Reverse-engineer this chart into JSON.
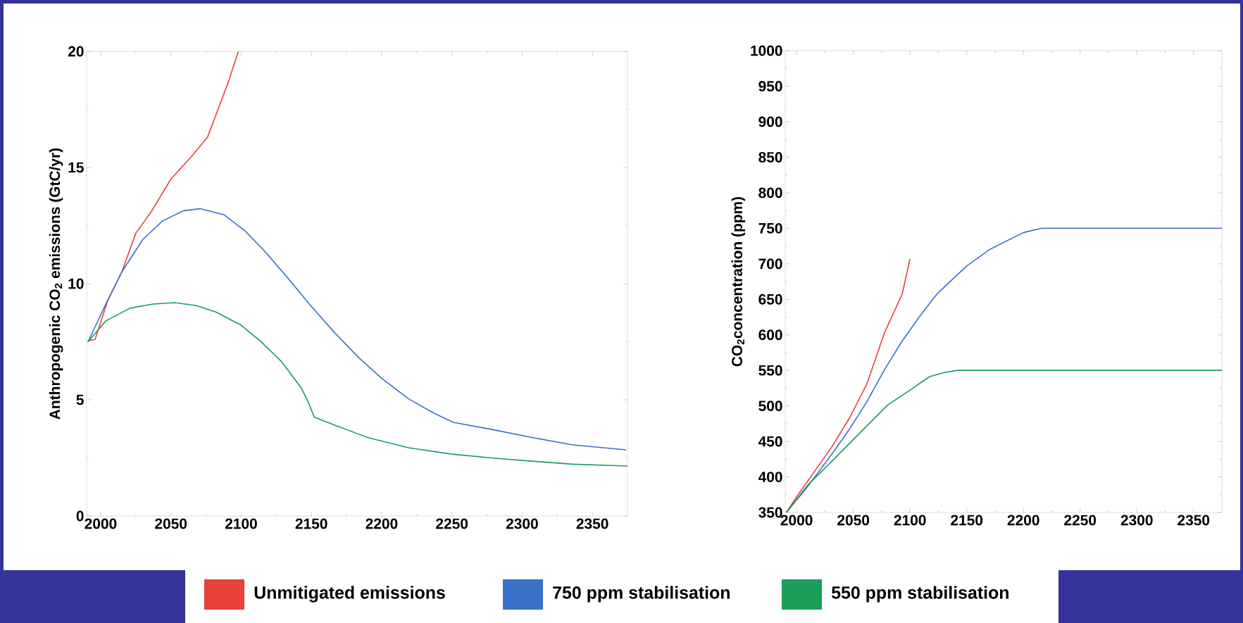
{
  "chart_data": [
    {
      "type": "line",
      "ylabel": "Anthropogenic CO$_{2}$ emissions (GtC/yr)",
      "xlim": [
        1990,
        2375
      ],
      "ylim": [
        0,
        20
      ],
      "xticks": [
        2000,
        2050,
        2100,
        2150,
        2200,
        2250,
        2300,
        2350
      ],
      "yticks": [
        0,
        5,
        10,
        15,
        20
      ],
      "grid": false,
      "legend": "bottom",
      "series": [
        {
          "name": "Unmitigated emissions",
          "color": "#e8403a",
          "x": [
            1992,
            1996,
            2005,
            2015,
            2025,
            2036,
            2050,
            2065,
            2076,
            2081,
            2091,
            2098
          ],
          "values": [
            7.55,
            7.6,
            9.27,
            10.5,
            12.17,
            13.1,
            14.5,
            15.5,
            16.3,
            17.1,
            18.7,
            20
          ]
        },
        {
          "name": "750 ppm stabilisation",
          "color": "#3a70c8",
          "x": [
            1991,
            2003.5,
            2015,
            2030,
            2044,
            2059,
            2071,
            2088,
            2103,
            2117,
            2132,
            2149,
            2167,
            2184,
            2200,
            2219,
            2237,
            2251,
            2278,
            2307,
            2336,
            2374
          ],
          "values": [
            7.5,
            9.1,
            10.5,
            11.9,
            12.7,
            13.14,
            13.23,
            12.96,
            12.26,
            11.38,
            10.33,
            9.09,
            7.86,
            6.8,
            5.93,
            5.05,
            4.43,
            4.03,
            3.73,
            3.38,
            3.06,
            2.85
          ]
        },
        {
          "name": "550 ppm stabilisation",
          "color": "#1a9e5a",
          "x": [
            1991,
            2003.5,
            2021,
            2038,
            2053,
            2068,
            2082,
            2100,
            2114,
            2129,
            2143,
            2148,
            2152,
            2167,
            2190,
            2219,
            2249,
            2278,
            2307,
            2336,
            2375
          ],
          "values": [
            7.5,
            8.39,
            8.95,
            9.13,
            9.18,
            9.06,
            8.78,
            8.21,
            7.51,
            6.63,
            5.49,
            4.87,
            4.26,
            3.9,
            3.38,
            2.94,
            2.67,
            2.5,
            2.36,
            2.23,
            2.15
          ]
        }
      ]
    },
    {
      "type": "line",
      "ylabel": "CO$_{2}$concentration (ppm)",
      "xlim": [
        1990,
        2375
      ],
      "ylim": [
        350,
        1000
      ],
      "xticks": [
        2000,
        2050,
        2100,
        2150,
        2200,
        2250,
        2300,
        2350
      ],
      "yticks": [
        350,
        400,
        450,
        500,
        550,
        600,
        650,
        700,
        750,
        800,
        850,
        900,
        950,
        1000
      ],
      "grid": false,
      "series": [
        {
          "color": "#e8403a",
          "x": [
            1991,
            2000,
            2015.5,
            2031,
            2047,
            2062,
            2077.5,
            2093,
            2100
          ],
          "values": [
            350,
            372,
            407,
            442,
            484,
            531,
            603,
            657,
            707
          ]
        },
        {
          "color": "#3a70c8",
          "x": [
            1991,
            2009,
            2031,
            2046.5,
            2062,
            2077.5,
            2093,
            2108,
            2124,
            2150,
            2170,
            2200,
            2216,
            2375
          ],
          "values": [
            350,
            385,
            432,
            467,
            506,
            551,
            591,
            625,
            658,
            697,
            720,
            744,
            750,
            750
          ]
        },
        {
          "color": "#1a9e5a",
          "x": [
            1991,
            2009,
            2031,
            2046.5,
            2062,
            2080,
            2099,
            2117,
            2130,
            2142,
            2375
          ],
          "values": [
            350,
            387,
            422,
            447,
            472,
            501,
            521,
            541,
            547,
            550,
            550
          ]
        }
      ]
    }
  ]
}
